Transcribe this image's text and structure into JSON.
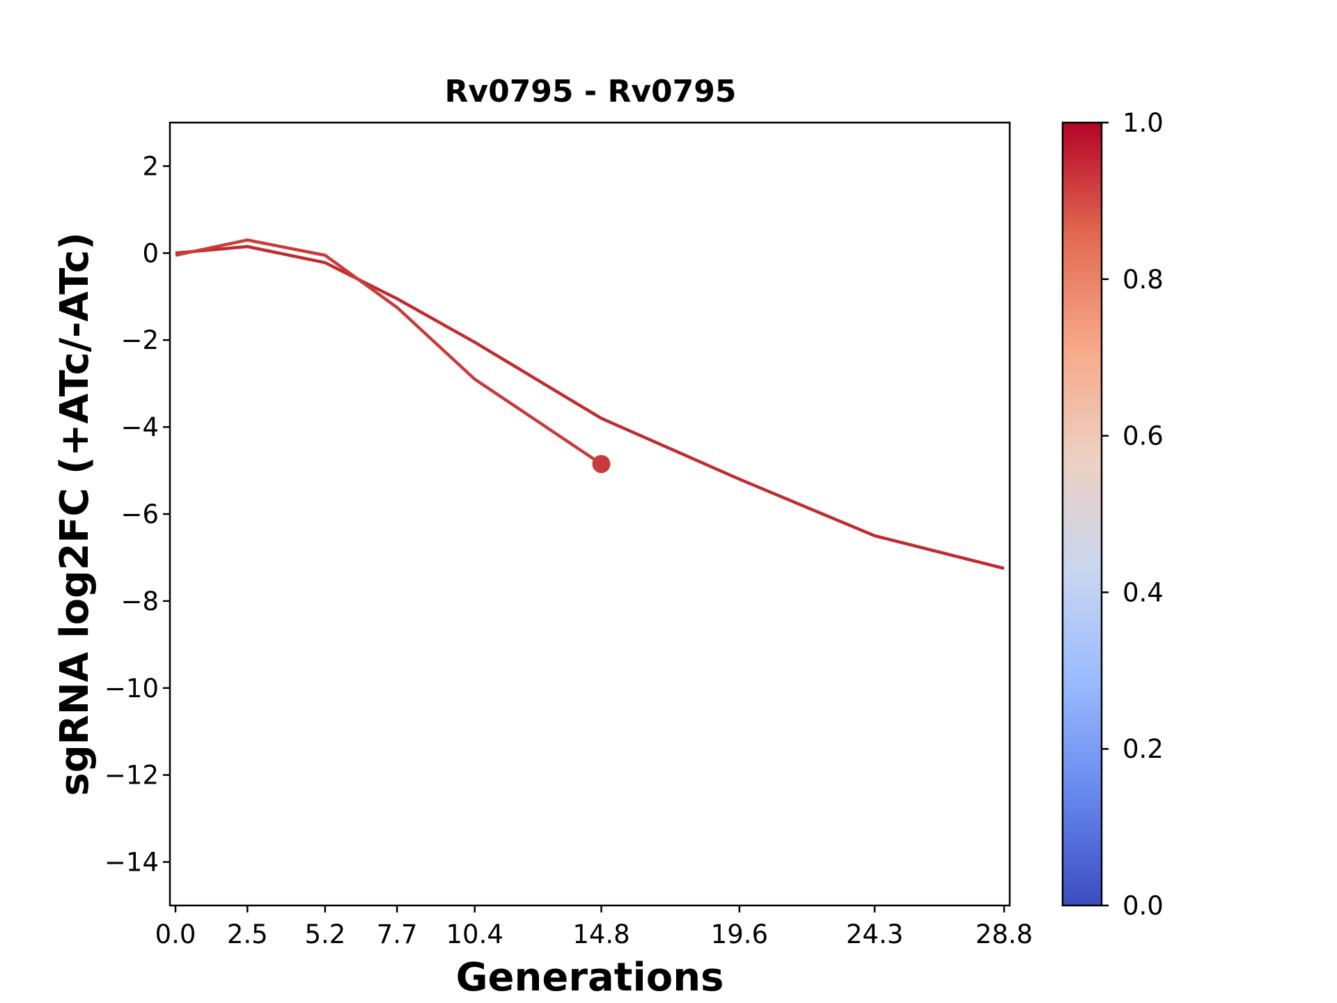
{
  "chart_data": {
    "type": "line",
    "title": "Rv0795 - Rv0795",
    "xlabel": "Generations",
    "ylabel": "sgRNA log2FC (+ATc/-ATc)",
    "xlim": [
      0,
      28.8
    ],
    "ylim": [
      -15,
      3
    ],
    "xticks": [
      0.0,
      2.5,
      5.2,
      7.7,
      10.4,
      14.8,
      19.6,
      24.3,
      28.8
    ],
    "xtick_labels": [
      "0.0",
      "2.5",
      "5.2",
      "7.7",
      "10.4",
      "14.8",
      "19.6",
      "24.3",
      "28.8"
    ],
    "yticks": [
      2,
      0,
      -2,
      -4,
      -6,
      -8,
      -10,
      -12,
      -14
    ],
    "ytick_labels": [
      "2",
      "0",
      "−2",
      "−4",
      "−6",
      "−8",
      "−10",
      "−12",
      "−14"
    ],
    "grid": false,
    "series": [
      {
        "color_value": 0.96,
        "color": "#bf2c30",
        "x": [
          0.0,
          2.5,
          5.2,
          7.7,
          10.4,
          14.8,
          19.6,
          24.3,
          28.8
        ],
        "y": [
          0.0,
          0.15,
          -0.22,
          -1.05,
          -2.05,
          -3.8,
          -5.2,
          -6.5,
          -7.25
        ]
      },
      {
        "color_value": 0.92,
        "color": "#c93b3a",
        "x": [
          0.0,
          2.5,
          5.2,
          7.7,
          10.4,
          14.8
        ],
        "y": [
          -0.05,
          0.3,
          -0.05,
          -1.25,
          -2.9,
          -4.85
        ],
        "end_marker": true
      }
    ],
    "colorbar": {
      "colormap": "coolwarm",
      "range": [
        0.0,
        1.0
      ],
      "ticks": [
        "0.0",
        "0.2",
        "0.4",
        "0.6",
        "0.8",
        "1.0"
      ],
      "tick_values": [
        0.0,
        0.2,
        0.4,
        0.6,
        0.8,
        1.0
      ],
      "stops": [
        "#3b4cc0",
        "#6788ee",
        "#9abbff",
        "#c9d7f0",
        "#edd1c2",
        "#f7a889",
        "#e26952",
        "#b40426"
      ]
    }
  }
}
